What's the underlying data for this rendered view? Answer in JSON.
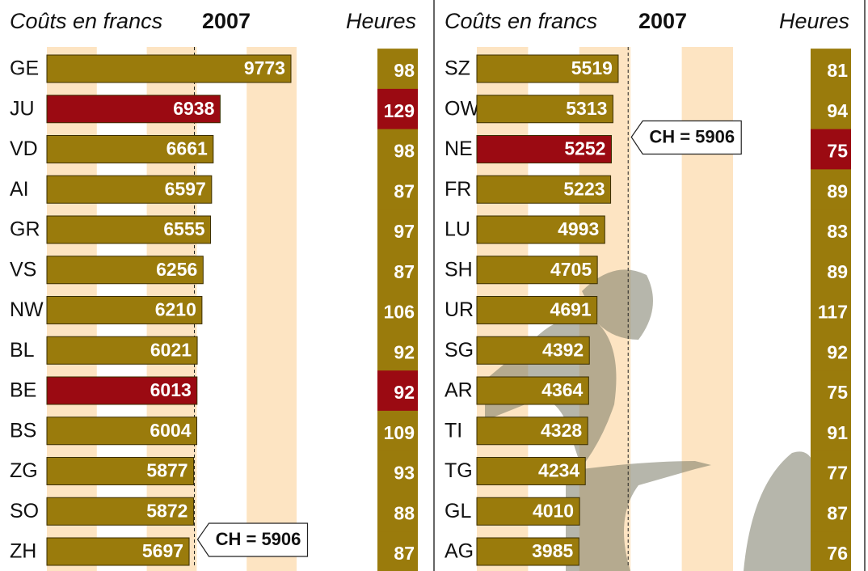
{
  "chart_data": [
    {
      "type": "bar",
      "orientation": "horizontal",
      "value_axis_label": "Coûts en francs",
      "title": "2007",
      "hours_label": "Heures",
      "categories": [
        "GE",
        "JU",
        "VD",
        "AI",
        "GR",
        "VS",
        "NW",
        "BL",
        "BE",
        "BS",
        "ZG",
        "SO",
        "ZH"
      ],
      "values": [
        9773,
        6938,
        6661,
        6597,
        6555,
        6256,
        6210,
        6021,
        6013,
        6004,
        5877,
        5872,
        5697
      ],
      "colors": [
        "#9a7b0c",
        "#9b0a12",
        "#9a7b0c",
        "#9a7b0c",
        "#9a7b0c",
        "#9a7b0c",
        "#9a7b0c",
        "#9a7b0c",
        "#9b0a12",
        "#9a7b0c",
        "#9a7b0c",
        "#9a7b0c",
        "#9a7b0c"
      ],
      "hours": [
        98,
        129,
        98,
        87,
        97,
        87,
        106,
        92,
        92,
        109,
        93,
        88,
        87
      ],
      "hours_colors": [
        "#9a7b0c",
        "#9b0a12",
        "#9a7b0c",
        "#9a7b0c",
        "#9a7b0c",
        "#9a7b0c",
        "#9a7b0c",
        "#9a7b0c",
        "#9b0a12",
        "#9a7b0c",
        "#9a7b0c",
        "#9a7b0c",
        "#9a7b0c"
      ],
      "xlim": [
        0,
        10000
      ],
      "xticks": [
        0,
        2000,
        4000,
        6000,
        8000,
        10000
      ],
      "band_color": "#fde4c2",
      "reference": {
        "value": 5906,
        "label": "CH = 5906"
      }
    },
    {
      "type": "bar",
      "orientation": "horizontal",
      "value_axis_label": "Coûts en francs",
      "title": "2007",
      "hours_label": "Heures",
      "categories": [
        "SZ",
        "OW",
        "NE",
        "FR",
        "LU",
        "SH",
        "UR",
        "SG",
        "AR",
        "TI",
        "TG",
        "GL",
        "AG"
      ],
      "values": [
        5519,
        5313,
        5252,
        5223,
        4993,
        4705,
        4691,
        4392,
        4364,
        4328,
        4234,
        4010,
        3985
      ],
      "colors": [
        "#9a7b0c",
        "#9a7b0c",
        "#9b0a12",
        "#9a7b0c",
        "#9a7b0c",
        "#9a7b0c",
        "#9a7b0c",
        "#9a7b0c",
        "#9a7b0c",
        "#9a7b0c",
        "#9a7b0c",
        "#9a7b0c",
        "#9a7b0c"
      ],
      "hours": [
        81,
        94,
        75,
        89,
        83,
        89,
        117,
        92,
        75,
        91,
        77,
        87,
        76
      ],
      "hours_colors": [
        "#9a7b0c",
        "#9a7b0c",
        "#9b0a12",
        "#9a7b0c",
        "#9a7b0c",
        "#9a7b0c",
        "#9a7b0c",
        "#9a7b0c",
        "#9a7b0c",
        "#9a7b0c",
        "#9a7b0c",
        "#9a7b0c",
        "#9a7b0c"
      ],
      "xlim": [
        0,
        10000
      ],
      "xticks": [
        0,
        2000,
        4000,
        6000,
        8000,
        10000
      ],
      "band_color": "#fde4c2",
      "reference": {
        "value": 5906,
        "label": "CH = 5906"
      }
    }
  ]
}
